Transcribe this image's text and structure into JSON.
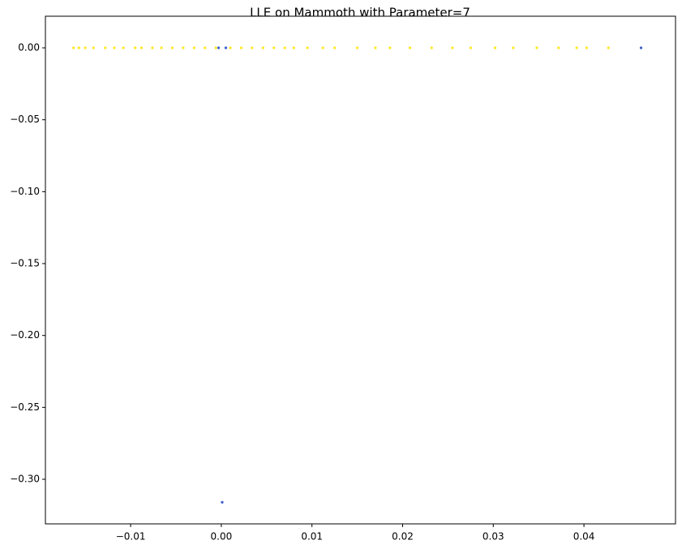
{
  "chart_data": {
    "type": "scatter",
    "title": "LLE on Mammoth with Parameter=7",
    "series": [
      {
        "color": "#fde725",
        "x": [
          -0.0163,
          -0.0157,
          -0.015,
          -0.0141,
          -0.0128,
          -0.0118,
          -0.0108,
          -0.0095,
          -0.0088,
          -0.0076,
          -0.0066,
          -0.0054,
          -0.0042,
          -0.003,
          -0.0018,
          -0.0006,
          0.001,
          0.0022,
          0.0034,
          0.0046,
          0.0058,
          0.007,
          0.008,
          0.0095,
          0.0112,
          0.0125,
          0.015,
          0.017,
          0.0186,
          0.0208,
          0.0232,
          0.0255,
          0.0275,
          0.0302,
          0.0322,
          0.0348,
          0.0372,
          0.0392,
          0.0403,
          0.0427
        ],
        "y": [
          0,
          0,
          0,
          0,
          0,
          0,
          0,
          0,
          0,
          0,
          0,
          0,
          0,
          0,
          0,
          0,
          0,
          0,
          0,
          0,
          0,
          0,
          0,
          0,
          0,
          0,
          0,
          0,
          0,
          0,
          0,
          0,
          0,
          0,
          0,
          0,
          0,
          0,
          0,
          0
        ]
      },
      {
        "color": "#3b5fc9",
        "x": [
          -0.0003,
          0.0005,
          0.0463,
          0.0001
        ],
        "y": [
          0,
          0,
          0,
          -0.316
        ]
      }
    ],
    "xlim": [
      -0.0194,
      0.0501
    ],
    "ylim": [
      -0.331,
      0.022
    ],
    "xticks": [
      {
        "value": -0.01,
        "label": "−0.01"
      },
      {
        "value": 0,
        "label": "0.00"
      },
      {
        "value": 0.01,
        "label": "0.01"
      },
      {
        "value": 0.02,
        "label": "0.02"
      },
      {
        "value": 0.03,
        "label": "0.03"
      },
      {
        "value": 0.04,
        "label": "0.04"
      }
    ],
    "yticks": [
      {
        "value": 0,
        "label": "0.00"
      },
      {
        "value": -0.05,
        "label": "−0.05"
      },
      {
        "value": -0.1,
        "label": "−0.10"
      },
      {
        "value": -0.15,
        "label": "−0.15"
      },
      {
        "value": -0.2,
        "label": "−0.20"
      },
      {
        "value": -0.25,
        "label": "−0.25"
      },
      {
        "value": -0.3,
        "label": "−0.30"
      }
    ]
  }
}
